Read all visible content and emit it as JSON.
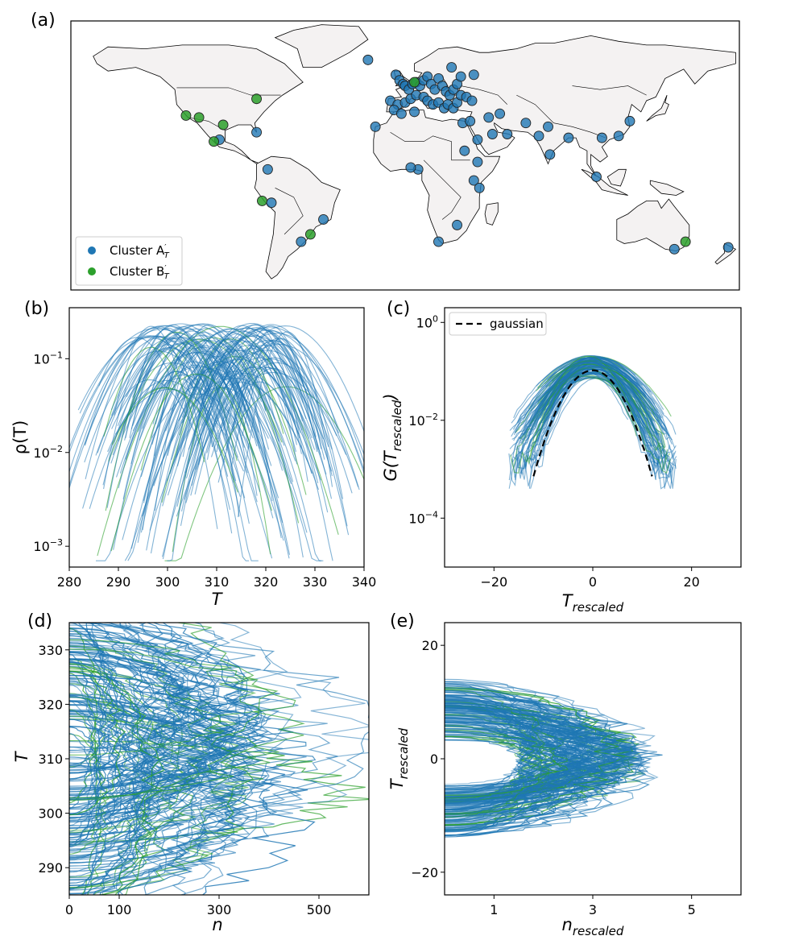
{
  "colors": {
    "cluster_a": "#1f77b4",
    "cluster_b": "#2ca02c",
    "map_land": "#f4f2f2",
    "map_border": "#000000"
  },
  "chart_data": [
    {
      "panel": "(a)",
      "type": "scatter",
      "title": "",
      "description_kind": "world map of stations",
      "legend": [
        {
          "label": "Cluster A′T",
          "base": "Cluster A",
          "sup": "′",
          "sub": "T",
          "color": "#1f77b4"
        },
        {
          "label": "Cluster B′T",
          "base": "Cluster B",
          "sup": "′",
          "sub": "T",
          "color": "#2ca02c"
        }
      ],
      "xlim": [
        -180,
        180
      ],
      "ylim": [
        -60,
        85
      ],
      "points_a": [
        [
          -20,
          64
        ],
        [
          -5,
          56
        ],
        [
          -3,
          53
        ],
        [
          -1,
          51
        ],
        [
          0,
          50
        ],
        [
          2,
          48
        ],
        [
          4,
          51
        ],
        [
          6,
          52
        ],
        [
          8,
          50
        ],
        [
          10,
          53
        ],
        [
          12,
          55
        ],
        [
          14,
          51
        ],
        [
          16,
          48
        ],
        [
          18,
          54
        ],
        [
          20,
          50
        ],
        [
          22,
          47
        ],
        [
          24,
          45
        ],
        [
          26,
          48
        ],
        [
          28,
          51
        ],
        [
          30,
          55
        ],
        [
          25,
          60
        ],
        [
          -8,
          42
        ],
        [
          -4,
          40
        ],
        [
          -6,
          37
        ],
        [
          0,
          41
        ],
        [
          3,
          43
        ],
        [
          6,
          45
        ],
        [
          10,
          44
        ],
        [
          12,
          42
        ],
        [
          15,
          40
        ],
        [
          18,
          41
        ],
        [
          21,
          38
        ],
        [
          23,
          40
        ],
        [
          26,
          38
        ],
        [
          28,
          41
        ],
        [
          30,
          45
        ],
        [
          33,
          44
        ],
        [
          36,
          42
        ],
        [
          37,
          56
        ],
        [
          -16,
          28
        ],
        [
          -2,
          35
        ],
        [
          5,
          36
        ],
        [
          31,
          30
        ],
        [
          35,
          31
        ],
        [
          39,
          21
        ],
        [
          32,
          15
        ],
        [
          45,
          33
        ],
        [
          51,
          35
        ],
        [
          47,
          24
        ],
        [
          55,
          24
        ],
        [
          65,
          30
        ],
        [
          72,
          23
        ],
        [
          77,
          28
        ],
        [
          78,
          13
        ],
        [
          88,
          22
        ],
        [
          106,
          22
        ],
        [
          115,
          23
        ],
        [
          121,
          31
        ],
        [
          -80,
          25
        ],
        [
          -100,
          21
        ],
        [
          -74,
          5
        ],
        [
          -72,
          -13
        ],
        [
          -56,
          -34
        ],
        [
          -44,
          -22
        ],
        [
          7,
          5
        ],
        [
          3,
          6
        ],
        [
          39,
          9
        ],
        [
          37,
          -1
        ],
        [
          40,
          -5
        ],
        [
          28,
          -25
        ],
        [
          18,
          -34
        ],
        [
          103,
          1
        ],
        [
          145,
          -38
        ],
        [
          174,
          -37
        ]
      ],
      "points_b": [
        [
          -118,
          34
        ],
        [
          -111,
          33
        ],
        [
          -98,
          29
        ],
        [
          -103,
          20
        ],
        [
          -80,
          43
        ],
        [
          -77,
          -12
        ],
        [
          -51,
          -30
        ],
        [
          151,
          -34
        ],
        [
          5,
          52
        ]
      ]
    },
    {
      "panel": "(b)",
      "type": "line",
      "title": "",
      "xlabel": "T",
      "ylabel": "ρ(T)",
      "xlim": [
        280,
        340
      ],
      "ylim": [
        0.0006,
        0.35
      ],
      "yscale": "log",
      "xticks": [
        "280",
        "290",
        "300",
        "310",
        "320",
        "330",
        "340"
      ],
      "yticks": [
        {
          "v": 0.001,
          "base": "10",
          "exp": "−3"
        },
        {
          "v": 0.01,
          "base": "10",
          "exp": "−2"
        },
        {
          "v": 0.1,
          "base": "10",
          "exp": "−1"
        }
      ],
      "series_note": "~150 gaussian-like temperature densities, cluster A (blue) and B (green)"
    },
    {
      "panel": "(c)",
      "type": "line",
      "title": "",
      "xlabel": "T",
      "xlabel_sub": "rescaled",
      "ylabel": "G(T",
      "ylabel_sub": "rescaled",
      "ylabel_close": ")",
      "xlim": [
        -30,
        30
      ],
      "ylim": [
        1e-05,
        2
      ],
      "yscale": "log",
      "xticks": [
        "−20",
        "0",
        "20"
      ],
      "yticks": [
        {
          "v": 0.0001,
          "base": "10",
          "exp": "−4"
        },
        {
          "v": 0.01,
          "base": "10",
          "exp": "−2"
        },
        {
          "v": 1,
          "base": "10",
          "exp": "0"
        }
      ],
      "legend": [
        {
          "label": "gaussian",
          "style": "dashed",
          "color": "#000000"
        }
      ],
      "gaussian": {
        "mean": 0,
        "sigma": 3.8,
        "peak": 0.105,
        "x_range": [
          -12,
          12
        ]
      }
    },
    {
      "panel": "(d)",
      "type": "line",
      "title": "",
      "xlabel": "n",
      "ylabel": "T",
      "xlim": [
        0,
        600
      ],
      "ylim": [
        285,
        335
      ],
      "xticks": [
        "0",
        "100",
        "300",
        "500"
      ],
      "xtick_values": [
        0,
        100,
        300,
        500
      ],
      "yticks": [
        "290",
        "300",
        "310",
        "320",
        "330"
      ]
    },
    {
      "panel": "(e)",
      "type": "line",
      "title": "",
      "xlabel": "n",
      "xlabel_sub": "rescaled",
      "ylabel": "T",
      "ylabel_sub": "rescaled",
      "xlim": [
        0,
        6
      ],
      "ylim": [
        -24,
        24
      ],
      "xticks": [
        "1",
        "3",
        "5"
      ],
      "xtick_values": [
        1,
        3,
        5
      ],
      "yticks": [
        "−20",
        "0",
        "20"
      ],
      "ytick_values": [
        -20,
        0,
        20
      ]
    }
  ]
}
